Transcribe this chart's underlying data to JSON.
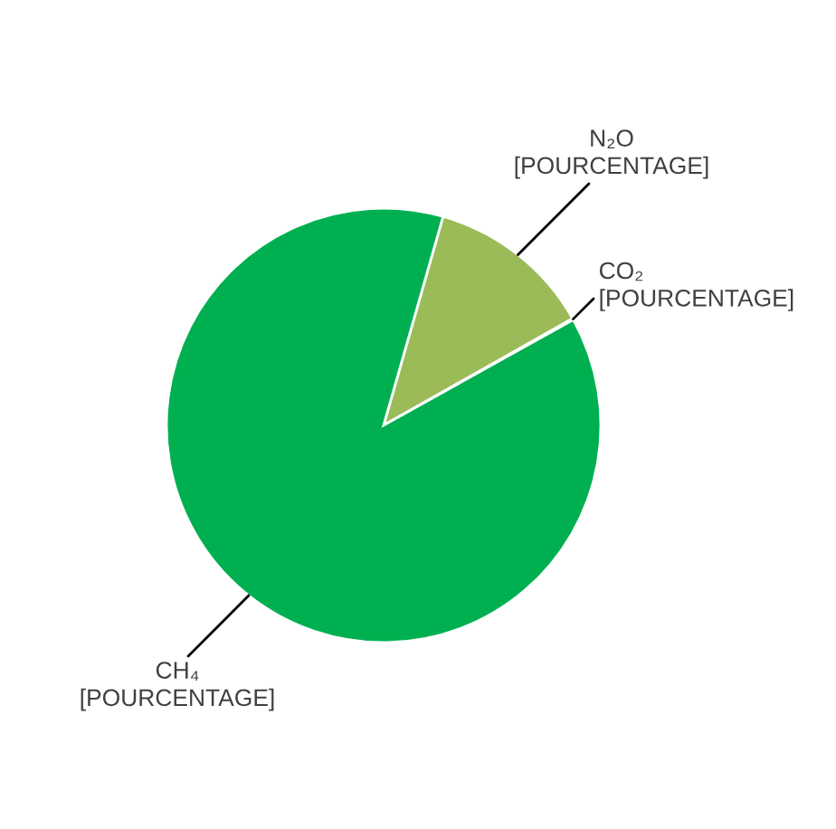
{
  "chart_data": {
    "type": "pie",
    "categories": [
      "N₂O",
      "CO₂",
      "CH₄"
    ],
    "values": [
      12.4,
      0.1,
      87.5
    ],
    "colors": [
      "#9bbb59",
      "#4f81bd",
      "#00b050"
    ],
    "value_labels": [
      "[POURCENTAGE]",
      "[POURCENTAGE]",
      "[POURCENTAGE]"
    ],
    "legend": false
  }
}
